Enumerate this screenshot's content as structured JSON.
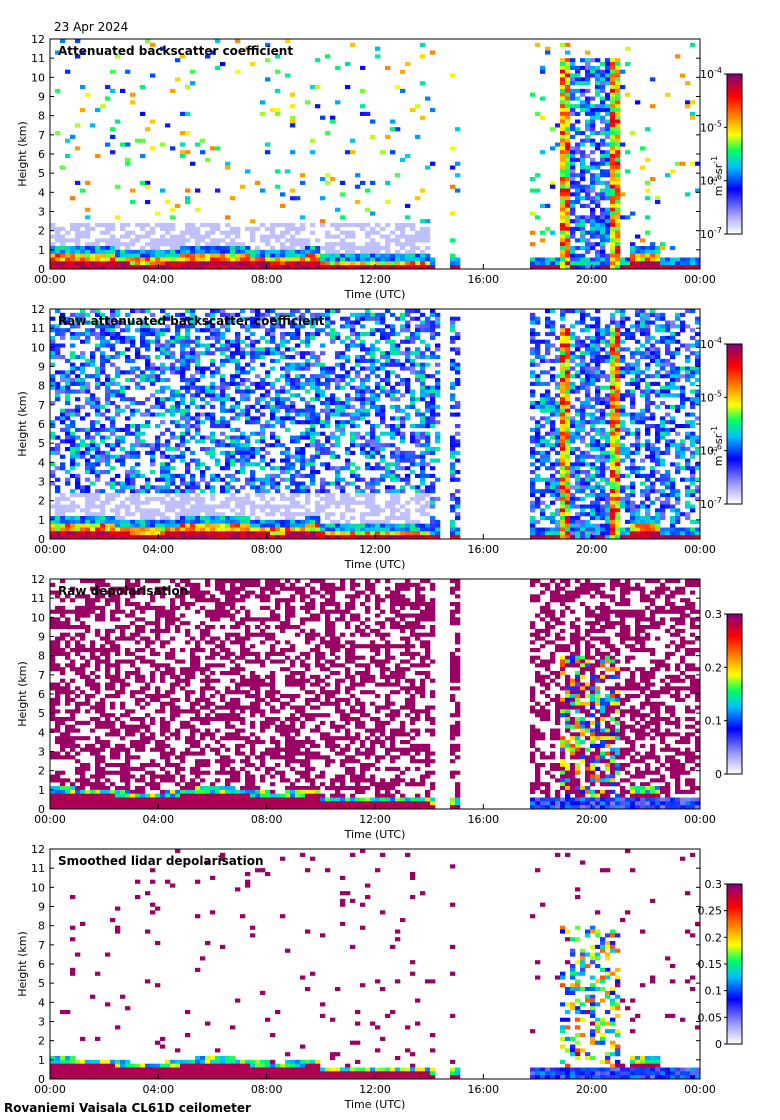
{
  "date": "23 Apr 2024",
  "footer": "Rovaniemi Vaisala CL61D ceilometer",
  "chart_data": [
    {
      "type": "heatmap",
      "title": "Attenuated backscatter coefficient",
      "xlabel": "Time (UTC)",
      "ylabel": "Height (km)",
      "x_ticks": [
        "00:00",
        "04:00",
        "08:00",
        "12:00",
        "16:00",
        "20:00",
        "00:00"
      ],
      "y_ticks": [
        0,
        1,
        2,
        3,
        4,
        5,
        6,
        7,
        8,
        9,
        10,
        11,
        12
      ],
      "ylim": [
        0,
        12
      ],
      "colorbar": {
        "scale": "log",
        "range": [
          1e-07,
          0.0001
        ],
        "ticks": [
          "10",
          "10",
          "10",
          "10"
        ],
        "exponents": [
          "-7",
          "-6",
          "-5",
          "-4"
        ],
        "unit": "m",
        "unit_exp": "-1",
        "unit2": "sr",
        "unit2_exp": "-1"
      },
      "data_gaps_hours": [
        [
          14.25,
          14.75
        ],
        [
          15.2,
          17.75
        ],
        [
          18.95,
          19.1
        ]
      ]
    },
    {
      "type": "heatmap",
      "title": "Raw attenuated backscatter coefficient",
      "xlabel": "Time (UTC)",
      "ylabel": "Height (km)",
      "x_ticks": [
        "00:00",
        "04:00",
        "08:00",
        "12:00",
        "16:00",
        "20:00",
        "00:00"
      ],
      "y_ticks": [
        0,
        1,
        2,
        3,
        4,
        5,
        6,
        7,
        8,
        9,
        10,
        11,
        12
      ],
      "ylim": [
        0,
        12
      ],
      "colorbar": {
        "scale": "log",
        "range": [
          1e-07,
          0.0001
        ],
        "ticks": [
          "10",
          "10",
          "10",
          "10"
        ],
        "exponents": [
          "-7",
          "-6",
          "-5",
          "-4"
        ],
        "unit": "m",
        "unit_exp": "-1",
        "unit2": "sr",
        "unit2_exp": "-1"
      },
      "data_gaps_hours": [
        [
          14.35,
          14.75
        ],
        [
          15.2,
          17.75
        ]
      ]
    },
    {
      "type": "heatmap",
      "title": "Raw depolarisation",
      "xlabel": "Time (UTC)",
      "ylabel": "Height (km)",
      "x_ticks": [
        "00:00",
        "04:00",
        "08:00",
        "12:00",
        "16:00",
        "20:00",
        "00:00"
      ],
      "y_ticks": [
        0,
        1,
        2,
        3,
        4,
        5,
        6,
        7,
        8,
        9,
        10,
        11,
        12
      ],
      "ylim": [
        0,
        12
      ],
      "colorbar": {
        "scale": "linear",
        "range": [
          0,
          0.3
        ],
        "ticks": [
          "0",
          "0.1",
          "0.2",
          "0.3"
        ]
      },
      "data_gaps_hours": [
        [
          14.25,
          14.75
        ],
        [
          15.2,
          17.75
        ]
      ]
    },
    {
      "type": "heatmap",
      "title": "Smoothed lidar depolarisation",
      "xlabel": "Time (UTC)",
      "ylabel": "Height (km)",
      "x_ticks": [
        "00:00",
        "04:00",
        "08:00",
        "12:00",
        "16:00",
        "20:00",
        "00:00"
      ],
      "y_ticks": [
        0,
        1,
        2,
        3,
        4,
        5,
        6,
        7,
        8,
        9,
        10,
        11,
        12
      ],
      "ylim": [
        0,
        12
      ],
      "colorbar": {
        "scale": "linear",
        "range": [
          0,
          0.3
        ],
        "ticks": [
          "0",
          "0.05",
          "0.1",
          "0.15",
          "0.2",
          "0.25",
          "0.3"
        ]
      },
      "data_gaps_hours": [
        [
          14.25,
          14.75
        ],
        [
          15.2,
          17.75
        ]
      ]
    }
  ]
}
